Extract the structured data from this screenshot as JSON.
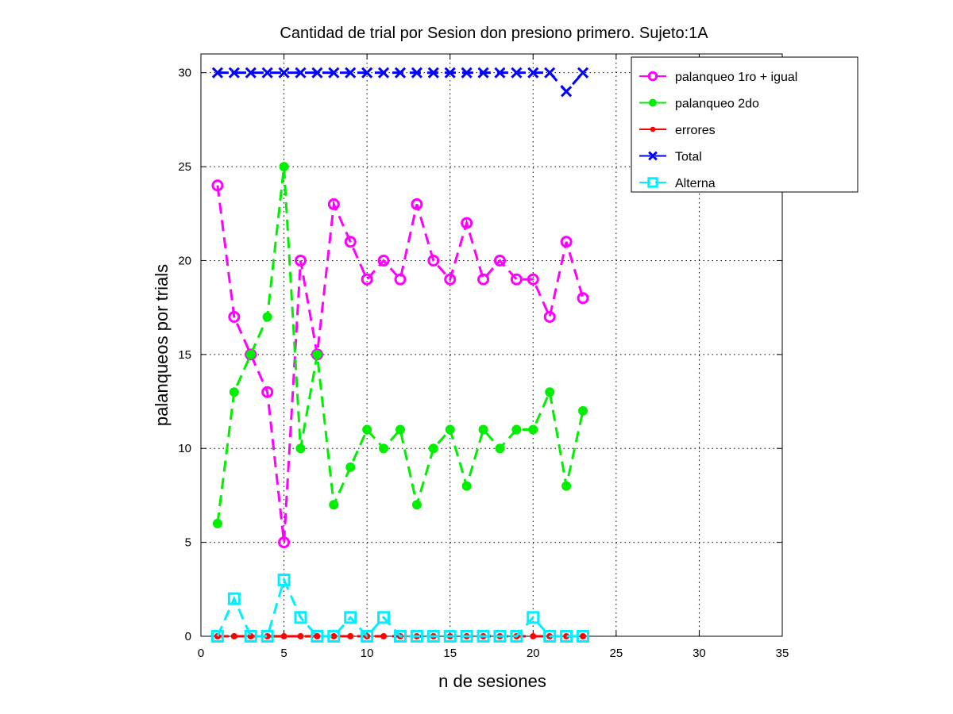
{
  "chart_data": {
    "type": "line",
    "title": "Cantidad de trial por Sesion don presiono primero. Sujeto:1A",
    "xlabel": "n de sesiones",
    "ylabel": "palanqueos por trials",
    "xlim": [
      0,
      35
    ],
    "ylim": [
      0,
      31
    ],
    "xticks": [
      0,
      5,
      10,
      15,
      20,
      25,
      30,
      35
    ],
    "yticks": [
      0,
      5,
      10,
      15,
      20,
      25,
      30
    ],
    "grid": true,
    "legend_position": "top-right",
    "x": [
      1,
      2,
      3,
      4,
      5,
      6,
      7,
      8,
      9,
      10,
      11,
      12,
      13,
      14,
      15,
      16,
      17,
      18,
      19,
      20,
      21,
      22,
      23
    ],
    "series": [
      {
        "name": "palanqueo 1ro + igual",
        "color": "#ff00ff",
        "marker": "circle",
        "values": [
          24,
          17,
          15,
          13,
          5,
          20,
          15,
          23,
          21,
          19,
          20,
          19,
          23,
          20,
          19,
          22,
          19,
          20,
          19,
          19,
          17,
          21,
          18
        ]
      },
      {
        "name": "palanqueo 2do",
        "color": "#00ee00",
        "marker": "star",
        "values": [
          6,
          13,
          15,
          17,
          25,
          10,
          15,
          7,
          9,
          11,
          10,
          11,
          7,
          10,
          11,
          8,
          11,
          10,
          11,
          11,
          13,
          8,
          12
        ]
      },
      {
        "name": "errores",
        "color": "#ff0000",
        "marker": "dot",
        "values": [
          0,
          0,
          0,
          0,
          0,
          0,
          0,
          0,
          0,
          0,
          0,
          0,
          0,
          0,
          0,
          0,
          0,
          0,
          0,
          0,
          0,
          0,
          0
        ]
      },
      {
        "name": "Total",
        "color": "#0000ff",
        "marker": "x",
        "values": [
          30,
          30,
          30,
          30,
          30,
          30,
          30,
          30,
          30,
          30,
          30,
          30,
          30,
          30,
          30,
          30,
          30,
          30,
          30,
          30,
          30,
          29,
          30
        ]
      },
      {
        "name": "Alterna",
        "color": "#00eeff",
        "marker": "square",
        "values": [
          0,
          2,
          0,
          0,
          3,
          1,
          0,
          0,
          1,
          0,
          1,
          0,
          0,
          0,
          0,
          0,
          0,
          0,
          0,
          1,
          0,
          0,
          0
        ]
      }
    ]
  }
}
